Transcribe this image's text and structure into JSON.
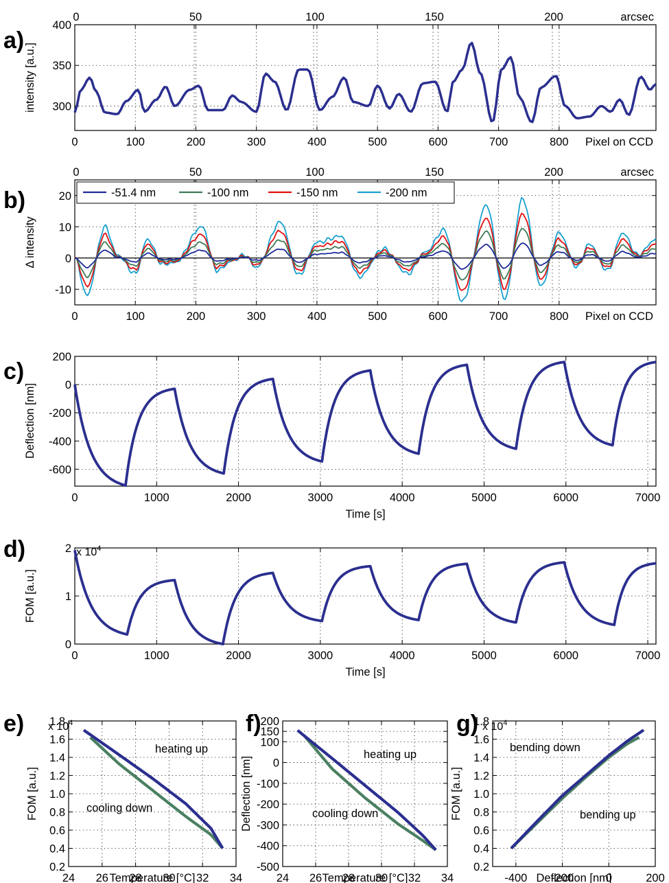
{
  "colors": {
    "blue": "#2b2f8f",
    "green": "#4a8060",
    "red": "#e0202a",
    "cyan": "#1aa3c8",
    "legend_darkblue": "#1f2a9a",
    "legend_green": "#3d7a55",
    "legend_red": "#e01010",
    "legend_cyan": "#19a0d0"
  },
  "chart_data": [
    {
      "panel": "a)",
      "type": "line",
      "xlabel": "Pixel on CCD",
      "ylabel": "intensity [a.u.]",
      "top_axis_label": "arcsec",
      "top_ticks": [
        "0",
        "50",
        "100",
        "150",
        "200"
      ],
      "top_tick_values": [
        0,
        50,
        100,
        150,
        200
      ],
      "xlim": [
        0,
        960
      ],
      "ylim": [
        270,
        400
      ],
      "xticks": [
        "0",
        "100",
        "200",
        "300",
        "400",
        "500",
        "600",
        "700",
        "800"
      ],
      "yticks": [
        "300",
        "350",
        "400"
      ],
      "series": [
        {
          "color": "#2b2f8f",
          "x": [
            0,
            10,
            25,
            35,
            50,
            70,
            85,
            105,
            115,
            135,
            150,
            165,
            190,
            205,
            220,
            245,
            260,
            275,
            300,
            315,
            330,
            350,
            370,
            385,
            405,
            425,
            445,
            460,
            485,
            500,
            520,
            535,
            555,
            575,
            595,
            615,
            625,
            640,
            655,
            670,
            690,
            705,
            720,
            735,
            755,
            770,
            795,
            810,
            830,
            850,
            870,
            885,
            900,
            915,
            935,
            950,
            960
          ],
          "y": [
            292,
            320,
            335,
            318,
            292,
            290,
            306,
            320,
            293,
            308,
            324,
            300,
            320,
            325,
            295,
            295,
            313,
            305,
            293,
            340,
            330,
            295,
            345,
            345,
            295,
            311,
            335,
            305,
            300,
            325,
            297,
            315,
            293,
            328,
            330,
            293,
            330,
            345,
            378,
            340,
            280,
            345,
            360,
            310,
            280,
            323,
            337,
            300,
            285,
            287,
            300,
            293,
            308,
            289,
            336,
            320,
            327
          ]
        }
      ]
    },
    {
      "panel": "b)",
      "type": "line",
      "xlabel": "Pixel on CCD",
      "ylabel": "Δ intensity",
      "top_axis_label": "arcsec",
      "top_ticks": [
        "0",
        "50",
        "100",
        "150",
        "200"
      ],
      "top_tick_values": [
        0,
        50,
        100,
        150,
        200
      ],
      "xlim": [
        0,
        960
      ],
      "ylim": [
        -15,
        25
      ],
      "xticks": [
        "0",
        "100",
        "200",
        "300",
        "400",
        "500",
        "600",
        "700",
        "800"
      ],
      "yticks": [
        "-10",
        "0",
        "10",
        "20"
      ],
      "legend_location": "top-left",
      "x": [
        0,
        20,
        50,
        70,
        100,
        120,
        145,
        165,
        210,
        235,
        260,
        280,
        300,
        340,
        370,
        400,
        440,
        470,
        510,
        550,
        580,
        610,
        640,
        680,
        710,
        740,
        770,
        800,
        830,
        850,
        880,
        905,
        930,
        960
      ],
      "base_shape": [
        0,
        -1.2,
        1,
        0.1,
        -0.5,
        0.6,
        -0.2,
        -0.15,
        1,
        -0.4,
        -0.1,
        0.1,
        -0.3,
        1.15,
        -0.55,
        0.5,
        0.7,
        -0.6,
        0.3,
        -0.5,
        0.2,
        0.9,
        -1.4,
        1.7,
        -1.3,
        1.9,
        -0.9,
        0.8,
        -0.3,
        0.45,
        -0.4,
        0.8,
        0.1,
        0.6
      ],
      "series": [
        {
          "name": "-51.4 nm",
          "color": "#1f2a9a",
          "scale": 2.5
        },
        {
          "name": "-100 nm",
          "color": "#3d7a55",
          "scale": 5.0
        },
        {
          "name": "-150 nm",
          "color": "#e01010",
          "scale": 7.5
        },
        {
          "name": "-200 nm",
          "color": "#19a0d0",
          "scale": 10.0
        }
      ]
    },
    {
      "panel": "c)",
      "type": "line",
      "xlabel": "Time [s]",
      "ylabel": "Deflection [nm]",
      "xlim": [
        0,
        7100
      ],
      "ylim": [
        -720,
        200
      ],
      "xticks": [
        "0",
        "1000",
        "2000",
        "3000",
        "4000",
        "5000",
        "6000",
        "7000"
      ],
      "yticks": [
        "-600",
        "-400",
        "-200",
        "0",
        "200"
      ],
      "cycles": [
        {
          "t_start": 0,
          "t_turn": 620,
          "t_end": 1220,
          "v_start": 0,
          "v_min": -715,
          "v_max": -30
        },
        {
          "t_start": 1220,
          "t_turn": 1820,
          "t_end": 2420,
          "v_start": -30,
          "v_min": -630,
          "v_max": 40
        },
        {
          "t_start": 2420,
          "t_turn": 3020,
          "t_end": 3610,
          "v_start": 40,
          "v_min": -545,
          "v_max": 100
        },
        {
          "t_start": 3610,
          "t_turn": 4200,
          "t_end": 4790,
          "v_start": 100,
          "v_min": -490,
          "v_max": 140
        },
        {
          "t_start": 4790,
          "t_turn": 5390,
          "t_end": 5980,
          "v_start": 140,
          "v_min": -455,
          "v_max": 160
        },
        {
          "t_start": 5980,
          "t_turn": 6570,
          "t_end": 7100,
          "v_start": 160,
          "v_min": -430,
          "v_max": 160
        }
      ],
      "series": [
        {
          "color": "#2b2f8f"
        }
      ]
    },
    {
      "panel": "d)",
      "type": "line",
      "xlabel": "Time [s]",
      "ylabel": "FOM [a.u.]",
      "exponent_label": "x 10",
      "exponent_power": "4",
      "xlim": [
        0,
        7100
      ],
      "ylim": [
        0,
        2
      ],
      "xticks": [
        "0",
        "1000",
        "2000",
        "3000",
        "4000",
        "5000",
        "6000",
        "7000"
      ],
      "yticks": [
        "0",
        "1",
        "2"
      ],
      "cycles": [
        {
          "t_start": 0,
          "t_turn": 640,
          "t_end": 1220,
          "v_start": 1.95,
          "v_min": 0.2,
          "v_max": 1.33
        },
        {
          "t_start": 1220,
          "t_turn": 1810,
          "t_end": 2420,
          "v_start": 1.33,
          "v_min": 0.0,
          "v_max": 1.48
        },
        {
          "t_start": 2420,
          "t_turn": 3020,
          "t_end": 3610,
          "v_start": 1.48,
          "v_min": 0.48,
          "v_max": 1.62
        },
        {
          "t_start": 3610,
          "t_turn": 4200,
          "t_end": 4790,
          "v_start": 1.62,
          "v_min": 0.5,
          "v_max": 1.67
        },
        {
          "t_start": 4790,
          "t_turn": 5390,
          "t_end": 5980,
          "v_start": 1.67,
          "v_min": 0.45,
          "v_max": 1.7
        },
        {
          "t_start": 5980,
          "t_turn": 6590,
          "t_end": 7100,
          "v_start": 1.7,
          "v_min": 0.4,
          "v_max": 1.68
        }
      ],
      "series": [
        {
          "color": "#2b2f8f"
        }
      ]
    },
    {
      "panel": "e)",
      "type": "line",
      "xlabel": "Temperature [°C]",
      "ylabel": "FOM [a.u.]",
      "exponent_label": "x 10",
      "exponent_power": "4",
      "xlim": [
        24,
        34
      ],
      "ylim": [
        0.2,
        1.8
      ],
      "xticks": [
        "24",
        "26",
        "28",
        "30",
        "32",
        "34"
      ],
      "yticks": [
        "0.2",
        "0.4",
        "0.6",
        "0.8",
        "1.0",
        "1.2",
        "1.4",
        "1.6",
        "1.8"
      ],
      "annotations": [
        "heating up",
        "cooling down"
      ],
      "series": [
        {
          "color": "#2b2f8f",
          "x": [
            24.9,
            27,
            29,
            31,
            32.5,
            33.2
          ],
          "y": [
            1.7,
            1.43,
            1.17,
            0.89,
            0.62,
            0.4
          ]
        },
        {
          "color": "#4a8060",
          "x": [
            25.3,
            27,
            29,
            31,
            32.5,
            33.2
          ],
          "y": [
            1.62,
            1.33,
            1.04,
            0.75,
            0.55,
            0.4
          ]
        }
      ]
    },
    {
      "panel": "f)",
      "type": "line",
      "xlabel": "Temperature [°C]",
      "ylabel": "Deflection [nm]",
      "xlim": [
        24,
        34
      ],
      "ylim": [
        -500,
        200
      ],
      "xticks": [
        "24",
        "26",
        "28",
        "30",
        "32",
        "34"
      ],
      "yticks": [
        "-500",
        "-400",
        "-300",
        "-200",
        "-100",
        "0",
        "100",
        "150",
        "200"
      ],
      "annotations": [
        "heating up",
        "cooling down"
      ],
      "series": [
        {
          "color": "#2b2f8f",
          "x": [
            24.9,
            27,
            29,
            31,
            32.5,
            33.3
          ],
          "y": [
            155,
            20,
            -110,
            -240,
            -350,
            -420
          ]
        },
        {
          "color": "#4a8060",
          "x": [
            25.3,
            27,
            29,
            31,
            32.5,
            33.3
          ],
          "y": [
            130,
            -30,
            -170,
            -295,
            -375,
            -420
          ]
        }
      ]
    },
    {
      "panel": "g)",
      "type": "line",
      "xlabel": "Deflection [nm]",
      "ylabel": "FOM [a.u.]",
      "exponent_label": "x 10",
      "exponent_power": "4",
      "xlim": [
        -500,
        200
      ],
      "ylim": [
        0.2,
        1.8
      ],
      "xticks": [
        "-400",
        "-200",
        "0",
        "200"
      ],
      "yticks": [
        "0.2",
        "0.4",
        "0.6",
        "0.8",
        "1.0",
        "1.2",
        "1.4",
        "1.6",
        "1.8"
      ],
      "annotations": [
        "bending down",
        "bending up"
      ],
      "series": [
        {
          "color": "#2b2f8f",
          "x": [
            -420,
            -300,
            -200,
            -100,
            0,
            80,
            150
          ],
          "y": [
            0.4,
            0.72,
            0.98,
            1.2,
            1.42,
            1.58,
            1.7
          ]
        },
        {
          "color": "#4a8060",
          "x": [
            -420,
            -300,
            -200,
            -100,
            0,
            80,
            130
          ],
          "y": [
            0.4,
            0.7,
            0.95,
            1.18,
            1.4,
            1.55,
            1.62
          ]
        }
      ]
    }
  ]
}
